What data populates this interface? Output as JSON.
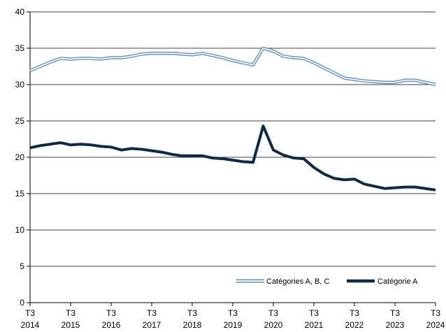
{
  "chart_data": {
    "type": "line",
    "title": "",
    "xlabel": "",
    "ylabel": "",
    "ylim": [
      0,
      40
    ],
    "yticks": [
      0,
      5,
      10,
      15,
      20,
      25,
      30,
      35,
      40
    ],
    "grid": "horizontal",
    "legend_position": "bottom-right",
    "x_ticks": [
      {
        "line1": "T3",
        "line2": "2014"
      },
      {
        "line1": "T3",
        "line2": "2015"
      },
      {
        "line1": "T3",
        "line2": "2016"
      },
      {
        "line1": "T3",
        "line2": "2017"
      },
      {
        "line1": "T3",
        "line2": "2018"
      },
      {
        "line1": "T3",
        "line2": "2019"
      },
      {
        "line1": "T3",
        "line2": "2020"
      },
      {
        "line1": "T3",
        "line2": "2021"
      },
      {
        "line1": "T3",
        "line2": "2022"
      },
      {
        "line1": "T3",
        "line2": "2023"
      },
      {
        "line1": "T3",
        "line2": "2024"
      }
    ],
    "x": [
      "2014-T3",
      "2014-T4",
      "2015-T1",
      "2015-T2",
      "2015-T3",
      "2015-T4",
      "2016-T1",
      "2016-T2",
      "2016-T3",
      "2016-T4",
      "2017-T1",
      "2017-T2",
      "2017-T3",
      "2017-T4",
      "2018-T1",
      "2018-T2",
      "2018-T3",
      "2018-T4",
      "2019-T1",
      "2019-T2",
      "2019-T3",
      "2019-T4",
      "2020-T1",
      "2020-T2",
      "2020-T3",
      "2020-T4",
      "2021-T1",
      "2021-T2",
      "2021-T3",
      "2021-T4",
      "2022-T1",
      "2022-T2",
      "2022-T3",
      "2022-T4",
      "2023-T1",
      "2023-T2",
      "2023-T3",
      "2023-T4",
      "2024-T1",
      "2024-T2",
      "2024-T3"
    ],
    "series": [
      {
        "name": "Catégories A, B, C",
        "color": "#5b8fc9",
        "style": "double-outline",
        "values": [
          31.9,
          32.5,
          33.1,
          33.6,
          33.5,
          33.6,
          33.6,
          33.5,
          33.7,
          33.7,
          33.9,
          34.2,
          34.3,
          34.3,
          34.3,
          34.2,
          34.1,
          34.3,
          34.0,
          33.7,
          33.3,
          33.0,
          32.7,
          35.0,
          34.6,
          33.9,
          33.7,
          33.6,
          33.0,
          32.3,
          31.6,
          30.9,
          30.7,
          30.5,
          30.4,
          30.3,
          30.3,
          30.6,
          30.6,
          30.3,
          30.0
        ]
      },
      {
        "name": "Catégorie A",
        "color": "#0f2a47",
        "style": "solid-thick",
        "values": [
          21.3,
          21.6,
          21.8,
          22.0,
          21.7,
          21.8,
          21.7,
          21.5,
          21.4,
          21.0,
          21.2,
          21.1,
          20.9,
          20.7,
          20.4,
          20.2,
          20.2,
          20.2,
          19.9,
          19.8,
          19.6,
          19.4,
          19.3,
          24.3,
          21.0,
          20.3,
          19.9,
          19.8,
          18.6,
          17.7,
          17.1,
          16.9,
          17.0,
          16.3,
          16.0,
          15.7,
          15.8,
          15.9,
          15.9,
          15.7,
          15.5
        ]
      }
    ]
  }
}
